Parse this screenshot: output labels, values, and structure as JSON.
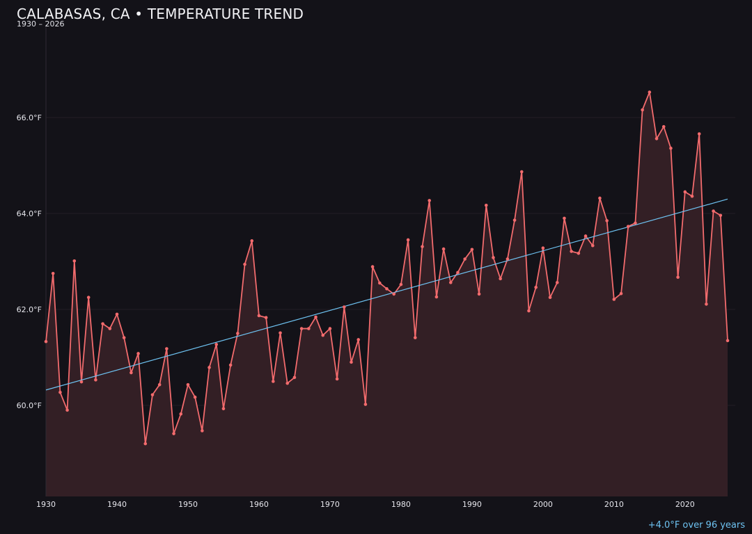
{
  "chart_data": {
    "type": "line",
    "title": "CALABASAS, CA • TEMPERATURE TREND",
    "subtitle": "1930 – 2026",
    "note": "+4.0°F over 96 years",
    "xlabel": "",
    "ylabel": "",
    "xlim": [
      1930,
      2026
    ],
    "ylim": [
      58.1,
      67.9
    ],
    "x_ticks": [
      1930,
      1940,
      1950,
      1960,
      1970,
      1980,
      1990,
      2000,
      2010,
      2020
    ],
    "y_ticks": [
      60,
      62,
      64,
      66
    ],
    "y_tick_labels": [
      "60.0°F",
      "62.0°F",
      "64.0°F",
      "66.0°F"
    ],
    "grid": "horizontal",
    "series": [
      {
        "values": [
          [
            1930,
            61.33
          ],
          [
            1931,
            62.75
          ],
          [
            1932,
            60.27
          ],
          [
            1933,
            59.9
          ],
          [
            1934,
            63.01
          ],
          [
            1935,
            60.49
          ],
          [
            1936,
            62.25
          ],
          [
            1937,
            60.53
          ],
          [
            1938,
            61.7
          ],
          [
            1939,
            61.6
          ],
          [
            1940,
            61.9
          ],
          [
            1941,
            61.41
          ],
          [
            1942,
            60.68
          ],
          [
            1943,
            61.08
          ],
          [
            1944,
            59.2
          ],
          [
            1945,
            60.22
          ],
          [
            1946,
            60.43
          ],
          [
            1947,
            61.18
          ],
          [
            1948,
            59.41
          ],
          [
            1949,
            59.82
          ],
          [
            1950,
            60.43
          ],
          [
            1951,
            60.17
          ],
          [
            1952,
            59.47
          ],
          [
            1953,
            60.79
          ],
          [
            1954,
            61.27
          ],
          [
            1955,
            59.93
          ],
          [
            1956,
            60.84
          ],
          [
            1957,
            61.5
          ],
          [
            1958,
            62.94
          ],
          [
            1959,
            63.43
          ],
          [
            1960,
            61.87
          ],
          [
            1961,
            61.83
          ],
          [
            1962,
            60.5
          ],
          [
            1963,
            61.51
          ],
          [
            1964,
            60.46
          ],
          [
            1965,
            60.58
          ],
          [
            1966,
            61.6
          ],
          [
            1967,
            61.6
          ],
          [
            1968,
            61.84
          ],
          [
            1969,
            61.46
          ],
          [
            1970,
            61.6
          ],
          [
            1971,
            60.55
          ],
          [
            1972,
            62.05
          ],
          [
            1973,
            60.9
          ],
          [
            1974,
            61.37
          ],
          [
            1975,
            60.02
          ],
          [
            1976,
            62.89
          ],
          [
            1977,
            62.55
          ],
          [
            1978,
            62.43
          ],
          [
            1979,
            62.32
          ],
          [
            1980,
            62.52
          ],
          [
            1981,
            63.45
          ],
          [
            1982,
            61.41
          ],
          [
            1983,
            63.31
          ],
          [
            1984,
            64.27
          ],
          [
            1985,
            62.26
          ],
          [
            1986,
            63.26
          ],
          [
            1987,
            62.56
          ],
          [
            1988,
            62.77
          ],
          [
            1989,
            63.05
          ],
          [
            1990,
            63.25
          ],
          [
            1991,
            62.32
          ],
          [
            1992,
            64.17
          ],
          [
            1993,
            63.08
          ],
          [
            1994,
            62.64
          ],
          [
            1995,
            63.05
          ],
          [
            1996,
            63.86
          ],
          [
            1997,
            64.87
          ],
          [
            1998,
            61.97
          ],
          [
            1999,
            62.46
          ],
          [
            2000,
            63.28
          ],
          [
            2001,
            62.25
          ],
          [
            2002,
            62.56
          ],
          [
            2003,
            63.9
          ],
          [
            2004,
            63.21
          ],
          [
            2005,
            63.17
          ],
          [
            2006,
            63.53
          ],
          [
            2007,
            63.33
          ],
          [
            2008,
            64.32
          ],
          [
            2009,
            63.85
          ],
          [
            2010,
            62.21
          ],
          [
            2011,
            62.33
          ],
          [
            2012,
            63.73
          ],
          [
            2013,
            63.8
          ],
          [
            2014,
            66.16
          ],
          [
            2015,
            66.53
          ],
          [
            2016,
            65.56
          ],
          [
            2017,
            65.81
          ],
          [
            2018,
            65.36
          ],
          [
            2019,
            62.67
          ],
          [
            2020,
            64.45
          ],
          [
            2021,
            64.36
          ],
          [
            2022,
            65.66
          ],
          [
            2023,
            62.11
          ],
          [
            2024,
            64.05
          ],
          [
            2025,
            63.96
          ],
          [
            2026,
            61.35
          ]
        ]
      }
    ],
    "trend": {
      "x": [
        1930,
        2026
      ],
      "y": [
        60.32,
        64.3
      ]
    },
    "colors": {
      "background": "#131218",
      "line": "#f26b6d",
      "fill": "#331f25",
      "trend": "#6ec3f2",
      "grid": "#231f26",
      "axis": "#2f2b33",
      "text": "#e6e6ec",
      "note": "#6ec3f2"
    }
  }
}
